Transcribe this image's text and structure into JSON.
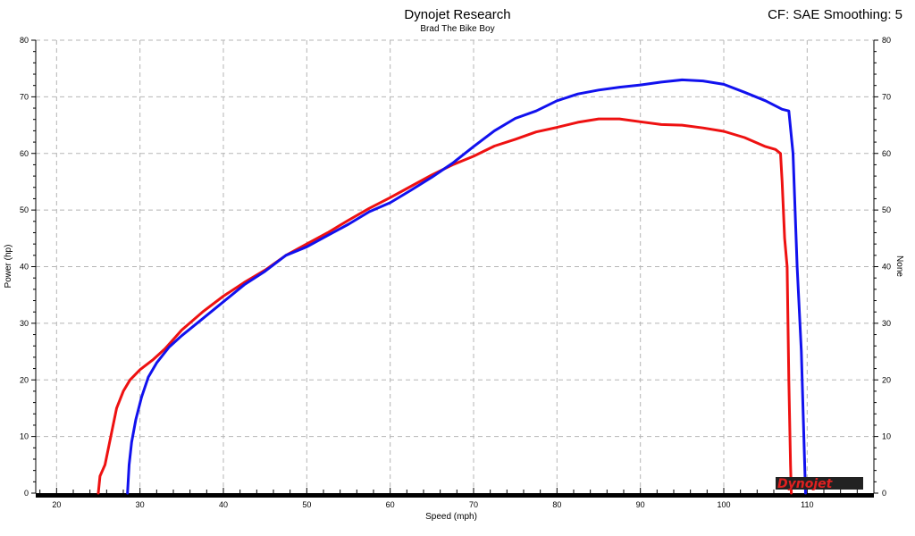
{
  "header": {
    "title": "Dynojet Research",
    "subtitle": "Brad The Bike Boy",
    "cf_label": "CF: SAE Smoothing: 5"
  },
  "logo": {
    "text": "Dynojet"
  },
  "chart_data": {
    "type": "line",
    "title": "Dynojet Research",
    "subtitle": "Brad The Bike Boy",
    "xlabel": "Speed (mph)",
    "ylabel": "Power (hp)",
    "y2label": "None",
    "xlim": [
      17.5,
      118
    ],
    "ylim": [
      0,
      80
    ],
    "y2lim": [
      0,
      80
    ],
    "xticks": [
      20,
      30,
      40,
      50,
      60,
      70,
      80,
      90,
      100,
      110
    ],
    "yticks": [
      0,
      10,
      20,
      30,
      40,
      50,
      60,
      70,
      80
    ],
    "grid": true,
    "series": [
      {
        "color": "#ee1111",
        "x": [
          25.0,
          25.2,
          25.8,
          26.5,
          27.2,
          28.0,
          28.8,
          30.0,
          31.5,
          33.0,
          35.0,
          37.5,
          40.0,
          42.5,
          45.0,
          47.5,
          50.0,
          52.5,
          55.0,
          57.5,
          60.0,
          62.5,
          65.0,
          67.5,
          70.0,
          72.5,
          75.0,
          77.5,
          80.0,
          82.5,
          85.0,
          87.5,
          90.0,
          92.5,
          95.0,
          97.5,
          100.0,
          102.5,
          105.0,
          106.2,
          106.8,
          107.0,
          107.3,
          107.6,
          107.8,
          108.0,
          108.1
        ],
        "values": [
          0,
          3,
          5,
          10,
          15,
          18,
          20,
          21.8,
          23.5,
          25.5,
          28.8,
          32.0,
          34.8,
          37.2,
          39.4,
          42.0,
          44.0,
          46.0,
          48.2,
          50.3,
          52.2,
          54.2,
          56.2,
          58.0,
          59.5,
          61.3,
          62.5,
          63.8,
          64.6,
          65.5,
          66.1,
          66.1,
          65.6,
          65.1,
          65.0,
          64.5,
          63.9,
          62.8,
          61.2,
          60.7,
          60.0,
          55.0,
          45.0,
          40.0,
          20.0,
          5.0,
          0
        ],
        "line_width": 3
      },
      {
        "color": "#1111ee",
        "x": [
          28.5,
          28.7,
          29.0,
          29.5,
          30.2,
          31.0,
          32.0,
          33.5,
          35.0,
          37.5,
          40.0,
          42.5,
          45.0,
          47.5,
          50.0,
          52.5,
          55.0,
          57.5,
          60.0,
          62.5,
          65.0,
          67.5,
          70.0,
          72.5,
          75.0,
          77.5,
          80.0,
          82.5,
          85.0,
          87.5,
          90.0,
          92.5,
          95.0,
          97.5,
          100.0,
          102.5,
          105.0,
          107.0,
          107.8,
          108.3,
          108.8,
          109.3,
          109.6,
          109.8
        ],
        "values": [
          0,
          5,
          9,
          13,
          17,
          20.5,
          23.0,
          25.8,
          27.8,
          30.8,
          33.8,
          36.8,
          39.2,
          42.0,
          43.5,
          45.5,
          47.5,
          49.7,
          51.3,
          53.5,
          55.8,
          58.3,
          61.2,
          64.0,
          66.2,
          67.5,
          69.3,
          70.5,
          71.2,
          71.7,
          72.1,
          72.6,
          73.0,
          72.8,
          72.2,
          70.8,
          69.3,
          67.8,
          67.5,
          60.0,
          40.0,
          25.0,
          10.0,
          0
        ],
        "line_width": 3
      }
    ]
  }
}
